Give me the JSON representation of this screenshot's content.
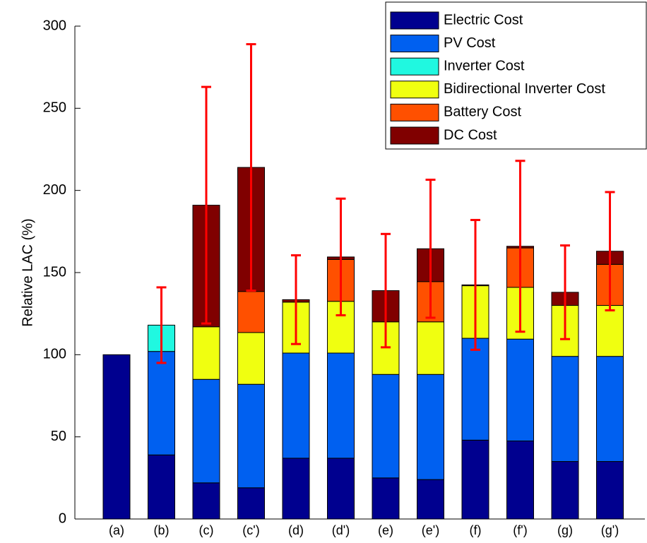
{
  "chart_data": {
    "type": "stacked_bar",
    "ylabel": "Relative LAC (%)",
    "categories": [
      "(a)",
      "(b)",
      "(c)",
      "(c')",
      "(d)",
      "(d')",
      "(e)",
      "(e')",
      "(f)",
      "(f')",
      "(g)",
      "(g')"
    ],
    "series": [
      {
        "name": "Electric Cost",
        "color": "#00008f",
        "values": [
          100,
          39,
          22,
          19,
          37,
          37,
          25,
          24,
          48,
          47.5,
          35,
          35
        ]
      },
      {
        "name": "PV Cost",
        "color": "#0060f0",
        "values": [
          0,
          63,
          63,
          63,
          64,
          64,
          63,
          64,
          62,
          62,
          64,
          64
        ]
      },
      {
        "name": "Inverter Cost",
        "color": "#20f8e0",
        "values": [
          0,
          16,
          0,
          0,
          0,
          0,
          0,
          0,
          0,
          0,
          0,
          0
        ]
      },
      {
        "name": "Bidirectional Inverter Cost",
        "color": "#f0ff10",
        "values": [
          0,
          0,
          32,
          31.5,
          31,
          31.5,
          32,
          32,
          32,
          31.5,
          31,
          31
        ]
      },
      {
        "name": "Battery Cost",
        "color": "#ff5000",
        "values": [
          0,
          0,
          0,
          25,
          0,
          25.5,
          0,
          24.5,
          0,
          24,
          0,
          25
        ]
      },
      {
        "name": "DC Cost",
        "color": "#800000",
        "values": [
          0,
          0,
          74,
          75.5,
          1.5,
          1.5,
          19,
          20,
          0.5,
          1,
          8,
          8
        ]
      }
    ],
    "errors": [
      null,
      23,
      72,
      75,
      27,
      35.5,
      34.5,
      42,
      39.5,
      52,
      28.5,
      36
    ],
    "error_color": "#ff0000",
    "ylim": [
      0,
      300
    ],
    "yticks": [
      0,
      50,
      100,
      150,
      200,
      250,
      300
    ],
    "legend": "upper right"
  }
}
